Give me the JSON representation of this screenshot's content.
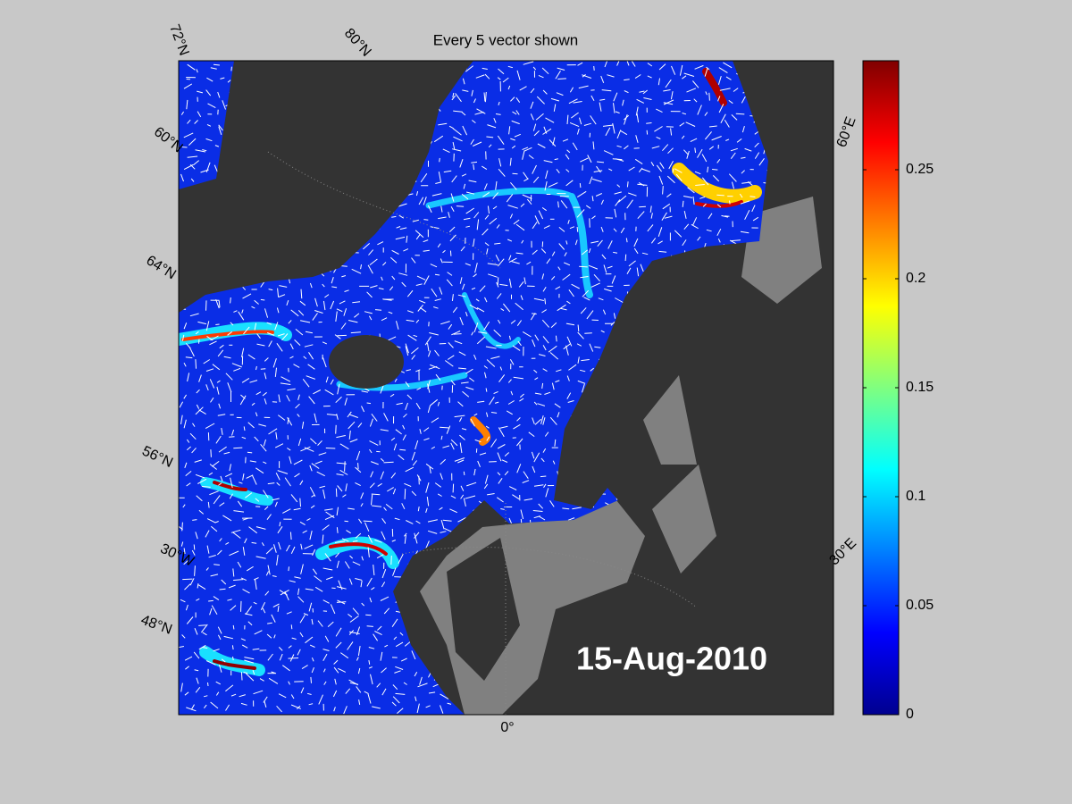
{
  "title": "Every 5 vector shown",
  "date_label": "15-Aug-2010",
  "graticule_labels": [
    "72°N",
    "80°N",
    "60°N",
    "64°N",
    "56°N",
    "30°W",
    "48°N",
    "0°",
    "60°E",
    "30°E"
  ],
  "colorbar": {
    "ylim": [
      0,
      0.3
    ],
    "yticks": [
      0,
      0.05,
      0.1,
      0.15,
      0.2,
      0.25
    ]
  }
}
